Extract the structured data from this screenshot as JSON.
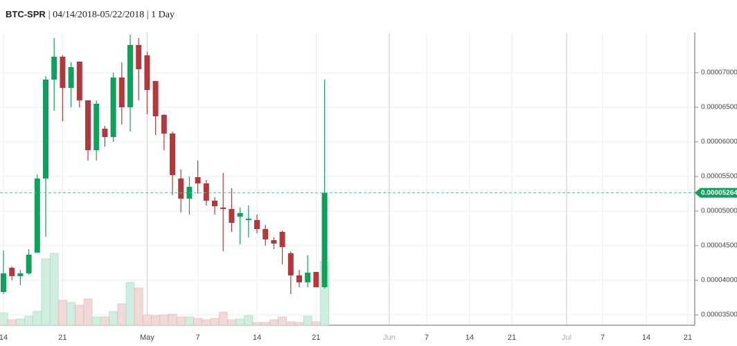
{
  "chart_data": {
    "type": "candlestick",
    "symbol": "BTC-SPR",
    "details": "| 04/14/2018-05/22/2018 | 1 Day",
    "categories": [
      "14",
      null,
      null,
      null,
      null,
      null,
      null,
      "21",
      null,
      null,
      null,
      null,
      null,
      null,
      null,
      null,
      null,
      "May",
      null,
      null,
      null,
      null,
      null,
      "7",
      null,
      null,
      null,
      null,
      null,
      null,
      "14",
      null,
      null,
      null,
      null,
      null,
      null,
      "21",
      null
    ],
    "future_xticks": [
      "Jun",
      "7",
      "14",
      "21",
      "Jul",
      "7",
      "14",
      "21"
    ],
    "open": [
      3.83e-05,
      4.18e-05,
      4.06e-05,
      4.1e-05,
      4.4e-05,
      5.47e-05,
      6.9e-05,
      7.23e-05,
      6.78e-05,
      7.16e-05,
      6.6e-05,
      5.88e-05,
      6.19e-05,
      6.07e-05,
      6.93e-05,
      6.5e-05,
      7.4e-05,
      7.25e-05,
      6.88e-05,
      6.39e-05,
      6.12e-05,
      5.47e-05,
      5.18e-05,
      5.49e-05,
      5.4e-05,
      5.15e-05,
      5.05e-05,
      5.03e-05,
      4.92e-05,
      4.87e-05,
      4.87e-05,
      4.74e-05,
      4.58e-05,
      4.7e-05,
      4.39e-05,
      4.07e-05,
      3.97e-05,
      4.12e-05,
      3.9e-05
    ],
    "high": [
      4.43e-05,
      4.2e-05,
      4.15e-05,
      4.45e-05,
      5.53e-05,
      6.95e-05,
      7.5e-05,
      7.25e-05,
      7.15e-05,
      7.16e-05,
      6.6e-05,
      6.6e-05,
      6.23e-05,
      7e-05,
      7.15e-05,
      7.55e-05,
      7.5e-05,
      7.3e-05,
      6.88e-05,
      6.4e-05,
      6.15e-05,
      5.6e-05,
      5.5e-05,
      5.73e-05,
      5.45e-05,
      5.2e-05,
      5.55e-05,
      5.33e-05,
      5.05e-05,
      5.08e-05,
      4.95e-05,
      4.8e-05,
      4.62e-05,
      4.72e-05,
      4.42e-05,
      4.15e-05,
      4.36e-05,
      4.12e-05,
      6.9e-05
    ],
    "low": [
      3.8e-05,
      4e-05,
      3.93e-05,
      4.08e-05,
      4.4e-05,
      4.63e-05,
      6.45e-05,
      6.3e-05,
      6.5e-05,
      6.5e-05,
      5.73e-05,
      5.73e-05,
      5.93e-05,
      6e-05,
      6.25e-05,
      6.15e-05,
      6.6e-05,
      6.4e-05,
      6.1e-05,
      5.88e-05,
      5.23e-05,
      4.98e-05,
      4.95e-05,
      5.25e-05,
      5.08e-05,
      4.95e-05,
      4.42e-05,
      4.7e-05,
      4.52e-05,
      4.62e-05,
      4.68e-05,
      4.5e-05,
      4.45e-05,
      4.23e-05,
      3.8e-05,
      3.9e-05,
      3.9e-05,
      3.9e-05,
      3.88e-05
    ],
    "close": [
      4.1e-05,
      4.06e-05,
      4.1e-05,
      4.37e-05,
      5.47e-05,
      6.9e-05,
      7.23e-05,
      6.78e-05,
      7.08e-05,
      6.6e-05,
      5.88e-05,
      6.55e-05,
      6.07e-05,
      6.93e-05,
      6.5e-05,
      7.4e-05,
      7.05e-05,
      6.75e-05,
      6.37e-05,
      6.12e-05,
      5.52e-05,
      5.18e-05,
      5.35e-05,
      5.4e-05,
      5.15e-05,
      5.07e-05,
      5.03e-05,
      4.83e-05,
      4.97e-05,
      4.89e-05,
      4.74e-05,
      4.59e-05,
      4.53e-05,
      4.48e-05,
      4.07e-05,
      3.97e-05,
      4.11e-05,
      3.9e-05,
      5.264e-05
    ],
    "volume": [
      18,
      8,
      9,
      13,
      20,
      96,
      104,
      36,
      33,
      29,
      38,
      12,
      12,
      20,
      31,
      62,
      54,
      15,
      14,
      15,
      16,
      12,
      12,
      10,
      8,
      10,
      19,
      8,
      9,
      14,
      4,
      4,
      8,
      12,
      5,
      4,
      13,
      5,
      92
    ],
    "up_color": "#11a05b",
    "down_color": "#b3383b",
    "last_price": 5.264e-05,
    "ylim": [
      3.35e-05,
      7.58e-05
    ],
    "yticks": [
      {
        "value": 3.5e-05,
        "label": "0.00003500"
      },
      {
        "value": 4e-05,
        "label": "0.00004000"
      },
      {
        "value": 4.5e-05,
        "label": "0.00004500"
      },
      {
        "value": 5e-05,
        "label": "0.00005000"
      },
      {
        "value": 5.5e-05,
        "label": "0.00005500"
      },
      {
        "value": 6e-05,
        "label": "0.00006000"
      },
      {
        "value": 6.5e-05,
        "label": "0.00006500"
      },
      {
        "value": 7e-05,
        "label": "0.00007000"
      }
    ],
    "grid": true
  }
}
